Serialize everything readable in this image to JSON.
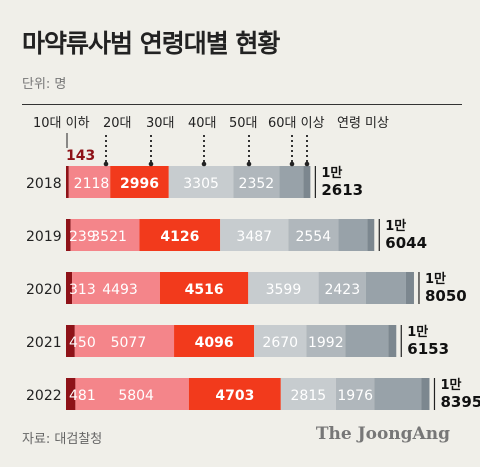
{
  "title": "마약류사범 연령대별 현황",
  "unit_label": "단위: 명",
  "source": "자료: 대검찰청",
  "brand": "The JoongAng",
  "chart_data": {
    "type": "bar",
    "orientation": "horizontal",
    "stacked": true,
    "categories": [
      "2018",
      "2019",
      "2020",
      "2021",
      "2022"
    ],
    "series": [
      {
        "name": "10대 이하",
        "color": "#8e1218",
        "values": [
          143,
          239,
          313,
          450,
          481
        ]
      },
      {
        "name": "20대",
        "color": "#f4858a",
        "values": [
          2118,
          3521,
          4493,
          5077,
          5804
        ]
      },
      {
        "name": "30대",
        "color": "#f23a1c",
        "values": [
          2996,
          4126,
          4516,
          4096,
          4703
        ]
      },
      {
        "name": "40대",
        "color": "#c7cccf",
        "values": [
          3305,
          3487,
          3599,
          2670,
          2815
        ]
      },
      {
        "name": "50대",
        "color": "#b0b7bc",
        "values": [
          2352,
          2554,
          2423,
          1992,
          1976
        ]
      },
      {
        "name": "60대 이상",
        "color": "#98a2a9",
        "values": [
          null,
          null,
          null,
          null,
          null
        ]
      },
      {
        "name": "연령 미상",
        "color": "#7c878f",
        "values": [
          null,
          null,
          null,
          null,
          null
        ]
      }
    ],
    "totals": [
      {
        "prefix": "1만",
        "value": "2613"
      },
      {
        "prefix": "1만",
        "value": "6044"
      },
      {
        "prefix": "1만",
        "value": "8050"
      },
      {
        "prefix": "1만",
        "value": "6153"
      },
      {
        "prefix": "1만",
        "value": "8395"
      }
    ],
    "legend": "top"
  }
}
